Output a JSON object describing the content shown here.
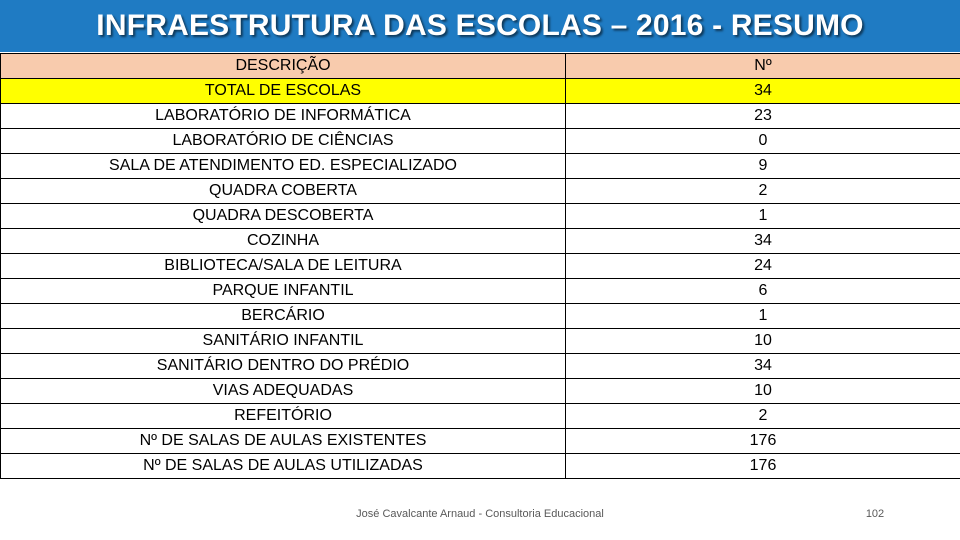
{
  "title": "INFRAESTRUTURA DAS ESCOLAS – 2016 - RESUMO",
  "colors": {
    "title_bar": "#1f7bc3",
    "header_row": "#f8cbad",
    "highlight_row": "#ffff00"
  },
  "table": {
    "header": {
      "description": "DESCRIÇÃO",
      "number": "Nº"
    },
    "rows": [
      {
        "description": "TOTAL DE ESCOLAS",
        "number": "34"
      },
      {
        "description": "LABORATÓRIO DE INFORMÁTICA",
        "number": "23"
      },
      {
        "description": "LABORATÓRIO DE CIÊNCIAS",
        "number": "0"
      },
      {
        "description": "SALA DE ATENDIMENTO ED. ESPECIALIZADO",
        "number": "9"
      },
      {
        "description": "QUADRA COBERTA",
        "number": "2"
      },
      {
        "description": "QUADRA DESCOBERTA",
        "number": "1"
      },
      {
        "description": "COZINHA",
        "number": "34"
      },
      {
        "description": "BIBLIOTECA/SALA DE LEITURA",
        "number": "24"
      },
      {
        "description": "PARQUE INFANTIL",
        "number": "6"
      },
      {
        "description": "BERCÁRIO",
        "number": "1"
      },
      {
        "description": "SANITÁRIO INFANTIL",
        "number": "10"
      },
      {
        "description": "SANITÁRIO DENTRO DO PRÉDIO",
        "number": "34"
      },
      {
        "description": "VIAS ADEQUADAS",
        "number": "10"
      },
      {
        "description": "REFEITÓRIO",
        "number": "2"
      },
      {
        "description": "Nº DE SALAS DE AULAS EXISTENTES",
        "number": "176"
      },
      {
        "description": "Nº DE SALAS DE AULAS UTILIZADAS",
        "number": "176"
      }
    ]
  },
  "footer": {
    "author": "José Cavalcante Arnaud - Consultoria Educacional",
    "page_number": "102"
  }
}
